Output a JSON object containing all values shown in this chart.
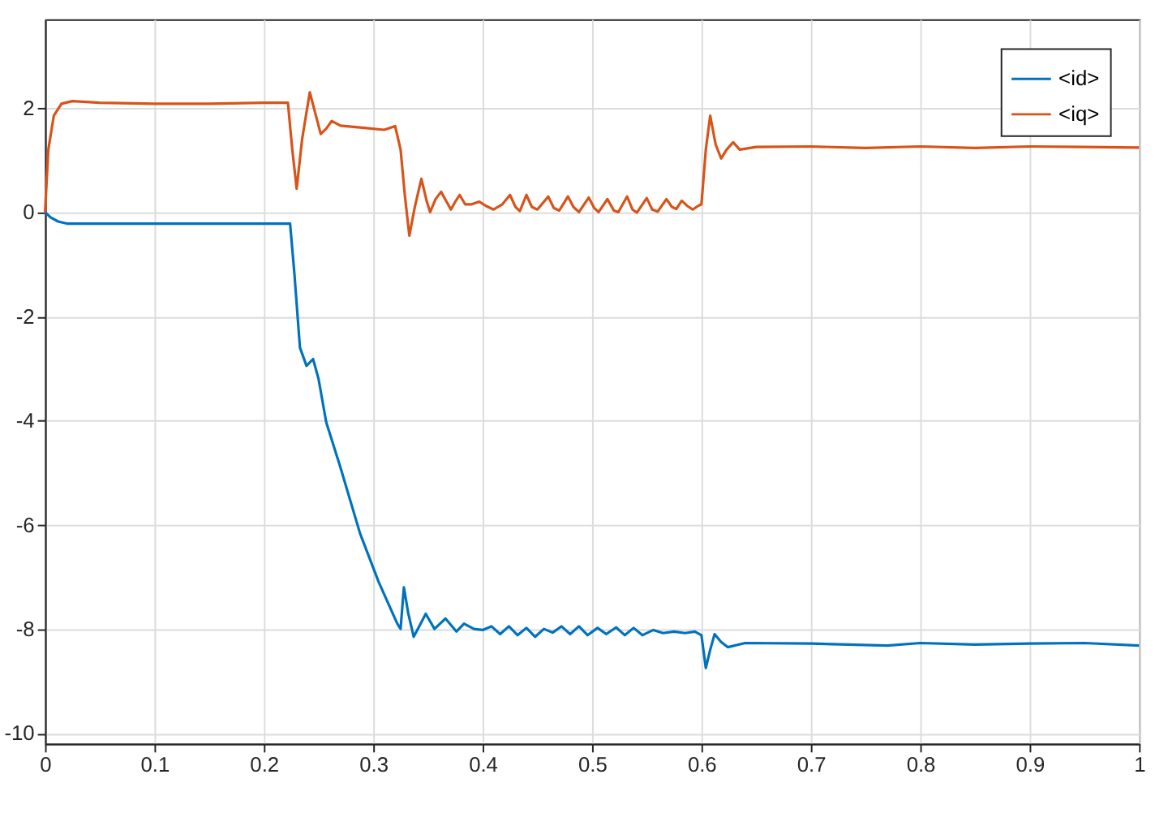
{
  "chart_data": {
    "type": "line",
    "xlim": [
      0,
      1
    ],
    "xticks": [
      0,
      0.1,
      0.2,
      0.3,
      0.4,
      0.5,
      0.6,
      0.7,
      0.8,
      0.9,
      1
    ],
    "ylim": [
      -10.2,
      3.7
    ],
    "yticks": [
      -10,
      -8,
      -6,
      -4,
      -2,
      0,
      2
    ],
    "grid": true,
    "legend": "top right",
    "line_style": "solid",
    "marker": "none",
    "series": [
      {
        "name": "<id>",
        "color": "#0072bd",
        "x": [
          0,
          0.005,
          0.012,
          0.02,
          0.1,
          0.2,
          0.224,
          0.228,
          0.233,
          0.239,
          0.245,
          0.25,
          0.257,
          0.27,
          0.288,
          0.305,
          0.322,
          0.325,
          0.328,
          0.332,
          0.337,
          0.342,
          0.348,
          0.356,
          0.366,
          0.376,
          0.383,
          0.392,
          0.4,
          0.408,
          0.416,
          0.424,
          0.432,
          0.44,
          0.448,
          0.456,
          0.464,
          0.472,
          0.48,
          0.488,
          0.496,
          0.505,
          0.513,
          0.522,
          0.53,
          0.538,
          0.546,
          0.556,
          0.565,
          0.575,
          0.585,
          0.594,
          0.6,
          0.604,
          0.608,
          0.612,
          0.618,
          0.624,
          0.64,
          0.7,
          0.77,
          0.8,
          0.85,
          0.9,
          0.95,
          1.0
        ],
        "values": [
          0,
          -0.1,
          -0.18,
          -0.22,
          -0.22,
          -0.22,
          -0.22,
          -1.2,
          -2.6,
          -2.95,
          -2.82,
          -3.2,
          -4.03,
          -4.9,
          -6.17,
          -7.1,
          -7.9,
          -8.0,
          -7.2,
          -7.7,
          -8.15,
          -7.95,
          -7.71,
          -8.0,
          -7.8,
          -8.05,
          -7.9,
          -8.0,
          -8.02,
          -7.95,
          -8.1,
          -7.95,
          -8.12,
          -7.98,
          -8.15,
          -8.0,
          -8.07,
          -7.95,
          -8.1,
          -7.95,
          -8.12,
          -7.98,
          -8.1,
          -7.97,
          -8.12,
          -7.98,
          -8.12,
          -8.02,
          -8.08,
          -8.05,
          -8.08,
          -8.05,
          -8.12,
          -8.75,
          -8.4,
          -8.1,
          -8.25,
          -8.35,
          -8.27,
          -8.28,
          -8.32,
          -8.27,
          -8.3,
          -8.28,
          -8.27,
          -8.32
        ]
      },
      {
        "name": "<iq>",
        "color": "#d95319",
        "x": [
          0,
          0.003,
          0.008,
          0.015,
          0.025,
          0.05,
          0.1,
          0.15,
          0.2,
          0.222,
          0.226,
          0.23,
          0.235,
          0.242,
          0.247,
          0.252,
          0.257,
          0.262,
          0.27,
          0.29,
          0.31,
          0.32,
          0.325,
          0.329,
          0.333,
          0.338,
          0.344,
          0.349,
          0.352,
          0.357,
          0.362,
          0.367,
          0.371,
          0.375,
          0.379,
          0.384,
          0.39,
          0.397,
          0.403,
          0.41,
          0.418,
          0.425,
          0.43,
          0.434,
          0.44,
          0.445,
          0.45,
          0.46,
          0.465,
          0.47,
          0.478,
          0.483,
          0.488,
          0.497,
          0.502,
          0.506,
          0.514,
          0.52,
          0.524,
          0.532,
          0.537,
          0.541,
          0.55,
          0.555,
          0.56,
          0.568,
          0.573,
          0.577,
          0.582,
          0.587,
          0.592,
          0.597,
          0.6,
          0.604,
          0.608,
          0.613,
          0.618,
          0.623,
          0.629,
          0.635,
          0.65,
          0.7,
          0.75,
          0.8,
          0.85,
          0.9,
          0.95,
          1.0
        ],
        "values": [
          0,
          1.2,
          1.85,
          2.08,
          2.13,
          2.1,
          2.08,
          2.08,
          2.1,
          2.1,
          1.2,
          0.45,
          1.4,
          2.3,
          1.9,
          1.5,
          1.6,
          1.75,
          1.66,
          1.62,
          1.58,
          1.65,
          1.2,
          0.3,
          -0.45,
          0.1,
          0.64,
          0.2,
          0.0,
          0.25,
          0.39,
          0.2,
          0.05,
          0.2,
          0.33,
          0.15,
          0.15,
          0.2,
          0.12,
          0.05,
          0.15,
          0.33,
          0.1,
          0.02,
          0.33,
          0.1,
          0.05,
          0.3,
          0.08,
          0.03,
          0.3,
          0.1,
          0.0,
          0.28,
          0.08,
          0.0,
          0.25,
          0.03,
          0.0,
          0.3,
          0.05,
          -0.01,
          0.27,
          0.05,
          0.01,
          0.25,
          0.1,
          0.06,
          0.22,
          0.12,
          0.05,
          0.12,
          0.15,
          1.2,
          1.85,
          1.3,
          1.03,
          1.2,
          1.34,
          1.2,
          1.25,
          1.26,
          1.23,
          1.26,
          1.23,
          1.26,
          1.25,
          1.24
        ]
      }
    ]
  }
}
